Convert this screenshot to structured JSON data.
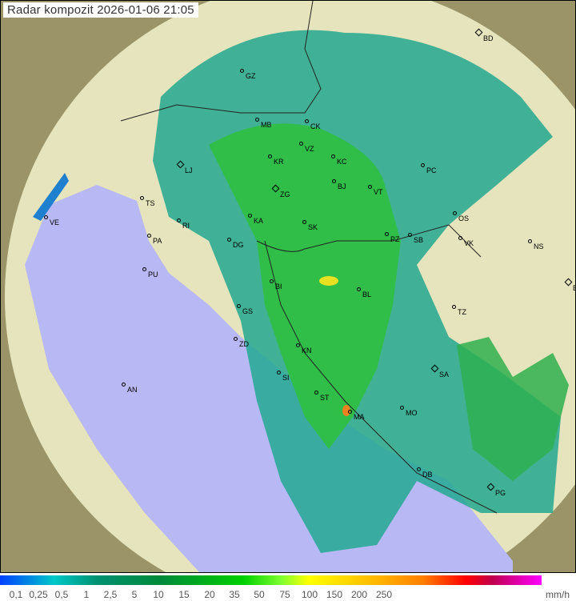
{
  "title": "Radar kompozit  2026-01-06   21:05",
  "colors": {
    "sea": "#b8b8f4",
    "land": "#e8e6bc",
    "radar_rain_low": "#1aa8b4",
    "radar_rain_mid": "#2db84a",
    "radar_rain_high": "#f0e020"
  },
  "cities": [
    "BD",
    "GZ",
    "MB",
    "CK",
    "VZ",
    "KR",
    "KC",
    "LJ",
    "PC",
    "BJ",
    "VT",
    "ZG",
    "TS",
    "VE",
    "RI",
    "KA",
    "SK",
    "OS",
    "PA",
    "DG",
    "PZ",
    "SB",
    "VK",
    "NS",
    "PU",
    "BI",
    "BL",
    "BG",
    "TZ",
    "GS",
    "ZD",
    "KN",
    "SA",
    "SI",
    "AN",
    "ST",
    "MA",
    "MO",
    "DB",
    "PG"
  ],
  "legend": {
    "ticks": [
      "0,1",
      "0,25",
      "0,5",
      "1",
      "2,5",
      "5",
      "10",
      "15",
      "20",
      "35",
      "50",
      "75",
      "100",
      "150",
      "200",
      "250"
    ],
    "unit": "mm/h"
  }
}
